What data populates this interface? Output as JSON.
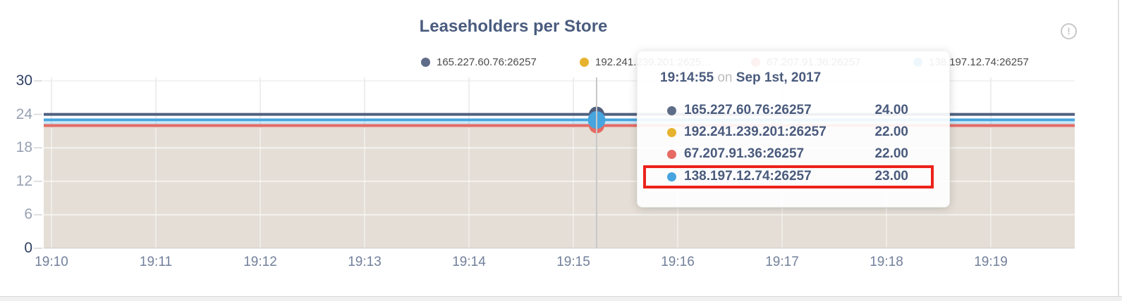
{
  "panel": {
    "title": "Leaseholders per Store",
    "info_glyph": "!"
  },
  "colors": {
    "title_slate": "#4a5c7e",
    "navy": "#51607f",
    "yellow": "#e7b32e",
    "red": "#e56b64",
    "blue": "#46a4de",
    "area_fill": "#e4ded6",
    "annotation_red": "#ec231b",
    "hover_line": "#c8c8c8"
  },
  "legend": {
    "items": [
      {
        "label": "165.227.60.76:26257",
        "color": "#5f6c88"
      },
      {
        "label": "192.241.239.201:2625…",
        "color": "#e7b32e"
      },
      {
        "label": "67.207.91.36:26257",
        "color": "#e56b64"
      },
      {
        "label": "138.197.12.74:26257",
        "color": "#46a4de"
      }
    ]
  },
  "tooltip": {
    "time": "19:14:55",
    "on_word": "on",
    "date": "Sep 1st, 2017",
    "rows": [
      {
        "name": "165.227.60.76:26257",
        "value": "24.00",
        "color": "#5f6c88"
      },
      {
        "name": "192.241.239.201:26257",
        "value": "22.00",
        "color": "#e7b32e"
      },
      {
        "name": "67.207.91.36:26257",
        "value": "22.00",
        "color": "#e56b64"
      },
      {
        "name": "138.197.12.74:26257",
        "value": "23.00",
        "color": "#46a4de"
      }
    ],
    "highlighted_row_index": 3
  },
  "chart_data": {
    "type": "line",
    "title": "Leaseholders per Store",
    "xlabel": "",
    "ylabel": "",
    "x_ticks": [
      "19:10",
      "19:11",
      "19:12",
      "19:13",
      "19:14",
      "19:15",
      "19:16",
      "19:17",
      "19:18",
      "19:19"
    ],
    "y_ticks": [
      {
        "label": "30",
        "value": 30,
        "strong": true
      },
      {
        "label": "24",
        "value": 24,
        "strong": false
      },
      {
        "label": "18",
        "value": 18,
        "strong": false
      },
      {
        "label": "12",
        "value": 12,
        "strong": false
      },
      {
        "label": "6",
        "value": 6,
        "strong": false
      },
      {
        "label": "0",
        "value": 0,
        "strong": true
      }
    ],
    "y_range": [
      0,
      30
    ],
    "grid": true,
    "area_fill": true,
    "legend_position": "top",
    "series": [
      {
        "name": "165.227.60.76:26257",
        "color": "#51607f",
        "value": 24
      },
      {
        "name": "192.241.239.201:26257",
        "color": "#e7b32e",
        "value": 22
      },
      {
        "name": "67.207.91.36:26257",
        "color": "#e56b64",
        "value": 22
      },
      {
        "name": "138.197.12.74:26257",
        "color": "#46a4de",
        "value": 23
      }
    ],
    "hover_point": {
      "time": "19:14:55",
      "date": "Sep 1st, 2017",
      "values": [
        24,
        22,
        22,
        23
      ]
    }
  }
}
